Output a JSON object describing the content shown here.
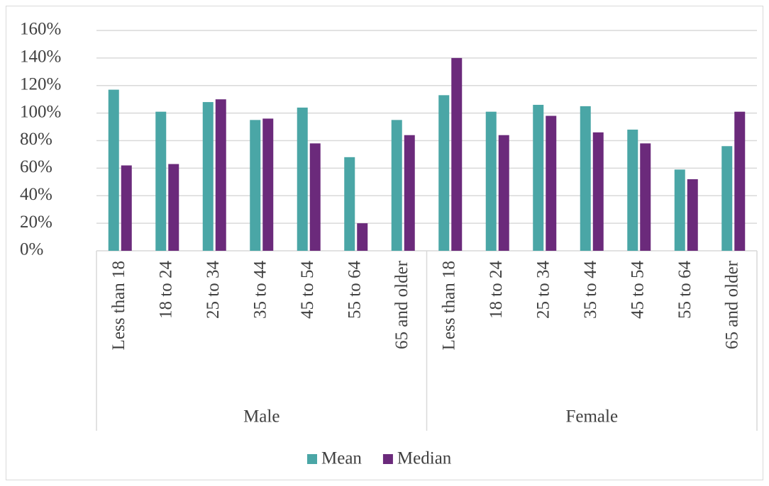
{
  "chart_data": {
    "type": "bar",
    "category_groups": [
      {
        "label": "Male",
        "categories": [
          "Less than 18",
          "18 to 24",
          "25 to 34",
          "35 to 44",
          "45 to 54",
          "55 to 64",
          "65 and older"
        ]
      },
      {
        "label": "Female",
        "categories": [
          "Less than 18",
          "18 to 24",
          "25 to 34",
          "35 to 44",
          "45 to 54",
          "55 to 64",
          "65 and older"
        ]
      }
    ],
    "series": [
      {
        "name": "Mean",
        "color": "#4aa6a6",
        "values": [
          117,
          101,
          108,
          95,
          104,
          68,
          95,
          113,
          101,
          106,
          105,
          88,
          59,
          76
        ]
      },
      {
        "name": "Median",
        "color": "#6b2a7b",
        "values": [
          62,
          63,
          110,
          96,
          78,
          20,
          84,
          140,
          84,
          98,
          86,
          78,
          52,
          101
        ]
      }
    ],
    "ylim": [
      0,
      160
    ],
    "yticks": [
      {
        "value": 0,
        "label": "0%"
      },
      {
        "value": 20,
        "label": "20%"
      },
      {
        "value": 40,
        "label": "40%"
      },
      {
        "value": 60,
        "label": "60%"
      },
      {
        "value": 80,
        "label": "80%"
      },
      {
        "value": 100,
        "label": "100%"
      },
      {
        "value": 120,
        "label": "120%"
      },
      {
        "value": 140,
        "label": "140%"
      },
      {
        "value": 160,
        "label": "160%"
      }
    ],
    "grid": true,
    "legend": "bottom"
  }
}
